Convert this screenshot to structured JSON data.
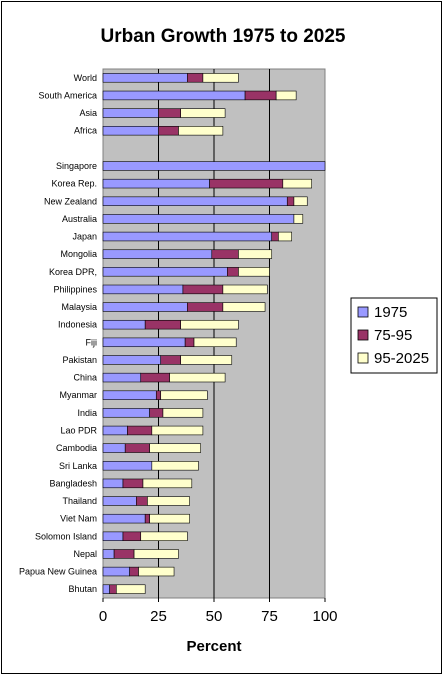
{
  "chart_data": {
    "type": "bar",
    "orientation": "horizontal",
    "stacked": true,
    "title": "Urban Growth 1975 to 2025",
    "xlabel": "Percent",
    "ylabel": "",
    "xlim": [
      0,
      100
    ],
    "xticks": [
      0,
      25,
      50,
      75,
      100
    ],
    "grid": "vertical major gridlines",
    "legend_position": "right",
    "plot_background": "#c0c0c0",
    "categories": [
      "World",
      "South America",
      "Asia",
      "Africa",
      "",
      "Singapore",
      "Korea Rep.",
      "New Zealand",
      "Australia",
      "Japan",
      "Mongolia",
      "Korea DPR,",
      "Philippines",
      "Malaysia",
      "Indonesia",
      "Fiji",
      "Pakistan",
      "China",
      "Myanmar",
      "India",
      "Lao PDR",
      "Cambodia",
      "Sri Lanka",
      "Bangladesh",
      "Thailand",
      "Viet Nam",
      "Solomon Island",
      "Nepal",
      "Papua New Guinea",
      "Bhutan"
    ],
    "series": [
      {
        "name": "1975",
        "color": "#9999ff",
        "values": [
          38,
          64,
          25,
          25,
          null,
          100,
          48,
          83,
          86,
          76,
          49,
          56,
          36,
          38,
          19,
          37,
          26,
          17,
          24,
          21,
          11,
          10,
          22,
          9,
          15,
          19,
          9,
          5,
          12,
          3
        ]
      },
      {
        "name": "75-95",
        "color": "#993366",
        "values": [
          7,
          14,
          10,
          9,
          null,
          0,
          33,
          3,
          0,
          3,
          12,
          5,
          18,
          16,
          16,
          4,
          9,
          13,
          2,
          6,
          11,
          11,
          0,
          9,
          5,
          2,
          8,
          9,
          4,
          3
        ]
      },
      {
        "name": "95-2025",
        "color": "#ffffcc",
        "values": [
          16,
          9,
          20,
          20,
          null,
          0,
          13,
          6,
          4,
          6,
          15,
          14,
          20,
          19,
          26,
          19,
          23,
          25,
          21,
          18,
          23,
          23,
          21,
          22,
          19,
          18,
          21,
          20,
          16,
          13
        ]
      }
    ]
  }
}
